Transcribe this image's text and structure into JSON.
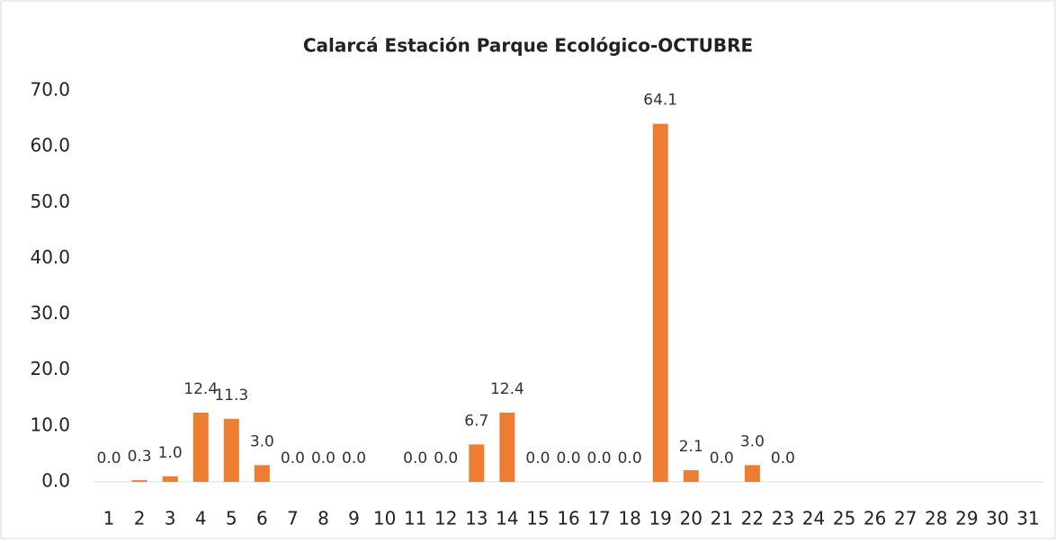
{
  "chart_data": {
    "type": "bar",
    "title": "Calarcá Estación Parque Ecológico-OCTUBRE",
    "categories": [
      "1",
      "2",
      "3",
      "4",
      "5",
      "6",
      "7",
      "8",
      "9",
      "10",
      "11",
      "12",
      "13",
      "14",
      "15",
      "16",
      "17",
      "18",
      "19",
      "20",
      "21",
      "22",
      "23",
      "24",
      "25",
      "26",
      "27",
      "28",
      "29",
      "30",
      "31"
    ],
    "values": [
      0,
      0.3,
      1.0,
      12.4,
      11.3,
      3.0,
      0,
      0,
      0,
      null,
      0,
      0,
      6.7,
      12.4,
      0,
      0,
      0,
      0,
      64.1,
      2.1,
      0,
      3.0,
      0,
      null,
      null,
      null,
      null,
      null,
      null,
      null,
      null
    ],
    "value_labels": [
      "0.0",
      "0.3",
      "1.0",
      "12.4",
      "11.3",
      "3.0",
      "0.0",
      "0.0",
      "0.0",
      null,
      "0.0",
      "0.0",
      "6.7",
      "12.4",
      "0.0",
      "0.0",
      "0.0",
      "0.0",
      "64.1",
      "2.1",
      "0.0",
      "3.0",
      "0.0",
      null,
      null,
      null,
      null,
      null,
      null,
      null,
      null
    ],
    "color": "#ed7d31",
    "ylim": [
      0,
      70
    ],
    "yticks": [
      {
        "value": 0,
        "label": "0.0"
      },
      {
        "value": 10,
        "label": "10.0"
      },
      {
        "value": 20,
        "label": "20.0"
      },
      {
        "value": 30,
        "label": "30.0"
      },
      {
        "value": 40,
        "label": "40.0"
      },
      {
        "value": 50,
        "label": "50.0"
      },
      {
        "value": 60,
        "label": "60.0"
      },
      {
        "value": 70,
        "label": "70.0"
      }
    ],
    "grid": false
  }
}
